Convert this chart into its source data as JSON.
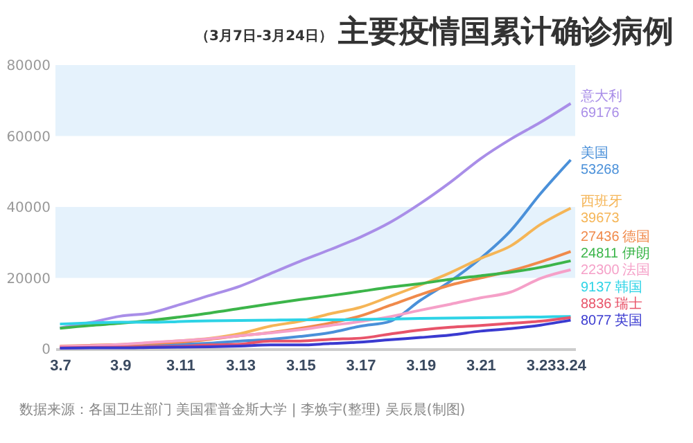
{
  "chart_data": {
    "type": "line",
    "title": "主要疫情国累计确诊病例",
    "subtitle": "（3月7日-3月24日）",
    "annotations": [
      "数据来源：各国卫生部门 美国霍普金斯大学 | 李焕宇(整理) 吴辰晨(制图)"
    ],
    "categories": [
      "3.7",
      null,
      "3.9",
      null,
      "3.11",
      null,
      "3.13",
      null,
      "3.15",
      null,
      "3.17",
      null,
      "3.19",
      null,
      "3.21",
      null,
      "3.23",
      "3.24"
    ],
    "ylim": [
      0,
      80000
    ],
    "yticks": [
      0,
      20000,
      40000,
      60000,
      80000
    ],
    "bands": [
      {
        "axis": "y",
        "from": 20000,
        "to": 40000,
        "color": "#e5f2fc"
      },
      {
        "axis": "y",
        "from": 60000,
        "to": 80000,
        "color": "#e5f2fc"
      }
    ],
    "marker": "none",
    "line_style": "solid",
    "series": [
      {
        "name": "意大利",
        "color": "#a98ee8",
        "values": [
          5900,
          7400,
          9200,
          10100,
          12500,
          15100,
          17700,
          21200,
          24700,
          28000,
          31500,
          35700,
          41000,
          47000,
          53600,
          59100,
          63900,
          69176
        ],
        "value_labels": [
          null,
          null,
          null,
          null,
          null,
          null,
          null,
          null,
          null,
          null,
          null,
          null,
          null,
          null,
          null,
          null,
          null,
          "69176"
        ]
      },
      {
        "name": "美国",
        "color": "#4a90d9",
        "values": [
          400,
          500,
          600,
          900,
          1300,
          1600,
          2200,
          2700,
          3500,
          4600,
          6400,
          7800,
          13700,
          19100,
          25500,
          33300,
          43800,
          53268
        ],
        "value_labels": [
          null,
          null,
          null,
          null,
          null,
          null,
          null,
          null,
          null,
          null,
          null,
          null,
          null,
          null,
          null,
          null,
          null,
          "53268"
        ]
      },
      {
        "name": "西班牙",
        "color": "#f5b556",
        "values": [
          500,
          700,
          1100,
          1700,
          2300,
          3000,
          4300,
          6400,
          7800,
          9900,
          11700,
          14800,
          18000,
          21500,
          25500,
          29000,
          35100,
          39673
        ],
        "value_labels": [
          null,
          null,
          null,
          null,
          null,
          null,
          null,
          null,
          null,
          null,
          null,
          null,
          null,
          null,
          null,
          null,
          null,
          "39673"
        ]
      },
      {
        "name": "德国",
        "color": "#f08a4b",
        "values": [
          800,
          1000,
          1200,
          1500,
          1900,
          2700,
          3700,
          4600,
          5800,
          7300,
          9300,
          12300,
          15300,
          18000,
          20000,
          22000,
          24500,
          27436
        ],
        "value_labels": [
          null,
          null,
          null,
          null,
          null,
          null,
          null,
          null,
          null,
          null,
          null,
          null,
          null,
          null,
          null,
          null,
          null,
          "27436"
        ]
      },
      {
        "name": "伊朗",
        "color": "#3cb54a",
        "values": [
          5800,
          6600,
          7200,
          8000,
          9000,
          10100,
          11400,
          12700,
          13900,
          15000,
          16200,
          17400,
          18400,
          19600,
          20600,
          21600,
          23000,
          24811
        ],
        "value_labels": [
          null,
          null,
          null,
          null,
          null,
          null,
          null,
          null,
          null,
          null,
          null,
          null,
          null,
          null,
          null,
          null,
          null,
          "24811"
        ]
      },
      {
        "name": "法国",
        "color": "#f5a0c8",
        "values": [
          700,
          900,
          1200,
          1800,
          2300,
          2900,
          3700,
          4500,
          5400,
          6600,
          7700,
          9100,
          10900,
          12600,
          14400,
          16000,
          19900,
          22300
        ],
        "value_labels": [
          null,
          null,
          null,
          null,
          null,
          null,
          null,
          null,
          null,
          null,
          null,
          null,
          null,
          null,
          null,
          null,
          null,
          "22300"
        ]
      },
      {
        "name": "韩国",
        "color": "#2dd3e6",
        "values": [
          7000,
          7300,
          7500,
          7500,
          7700,
          7900,
          8000,
          8100,
          8200,
          8200,
          8300,
          8400,
          8600,
          8700,
          8800,
          8900,
          9000,
          9137
        ],
        "value_labels": [
          null,
          null,
          null,
          null,
          null,
          null,
          null,
          null,
          null,
          null,
          null,
          null,
          null,
          null,
          null,
          null,
          null,
          "9137"
        ]
      },
      {
        "name": "瑞士",
        "color": "#e8546a",
        "values": [
          300,
          400,
          500,
          600,
          700,
          1100,
          1300,
          2200,
          2200,
          2700,
          3000,
          4200,
          5300,
          6100,
          6600,
          7200,
          7800,
          8836
        ],
        "value_labels": [
          null,
          null,
          null,
          null,
          null,
          null,
          null,
          null,
          null,
          null,
          null,
          null,
          null,
          null,
          null,
          null,
          null,
          "8836"
        ]
      },
      {
        "name": "英国",
        "color": "#3a3ad0",
        "values": [
          200,
          300,
          300,
          400,
          500,
          600,
          800,
          1100,
          1100,
          1500,
          1900,
          2600,
          3200,
          3900,
          5000,
          5700,
          6700,
          8077
        ],
        "value_labels": [
          null,
          null,
          null,
          null,
          null,
          null,
          null,
          null,
          null,
          null,
          null,
          null,
          null,
          null,
          null,
          null,
          null,
          "8077"
        ]
      }
    ]
  }
}
